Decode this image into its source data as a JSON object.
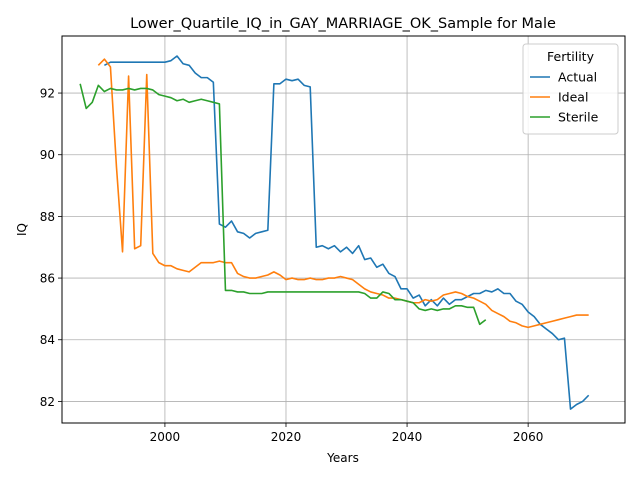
{
  "chart_data": {
    "type": "line",
    "title": "Lower_Quartile_IQ_in_GAY_MARRIAGE_OK_Sample for Male",
    "xlabel": "Years",
    "ylabel": "IQ",
    "xlim": [
      1983,
      2076
    ],
    "ylim": [
      81.3,
      93.85
    ],
    "xticks": [
      2000,
      2020,
      2040,
      2060
    ],
    "yticks": [
      82,
      84,
      86,
      88,
      90,
      92
    ],
    "grid": true,
    "legend": {
      "title": "Fertility",
      "placement": "top-right"
    },
    "series": [
      {
        "name": "Actual",
        "color": "#1f77b4",
        "x": [
          1990,
          1991,
          1992,
          1993,
          1994,
          1995,
          1996,
          1997,
          1998,
          1999,
          2000,
          2001,
          2002,
          2003,
          2004,
          2005,
          2006,
          2007,
          2008,
          2009,
          2010,
          2011,
          2012,
          2013,
          2014,
          2015,
          2016,
          2017,
          2018,
          2019,
          2020,
          2021,
          2022,
          2023,
          2024,
          2025,
          2026,
          2027,
          2028,
          2029,
          2030,
          2031,
          2032,
          2033,
          2034,
          2035,
          2036,
          2037,
          2038,
          2039,
          2040,
          2041,
          2042,
          2043,
          2044,
          2045,
          2046,
          2047,
          2048,
          2049,
          2050,
          2051,
          2052,
          2053,
          2054,
          2055,
          2056,
          2057,
          2058,
          2059,
          2060,
          2061,
          2062,
          2063,
          2064,
          2065,
          2066,
          2067,
          2068,
          2069,
          2070
        ],
        "y": [
          92.9,
          93.0,
          93.0,
          93.0,
          93.0,
          93.0,
          93.0,
          93.0,
          93.0,
          93.0,
          93.0,
          93.05,
          93.2,
          92.95,
          92.9,
          92.65,
          92.5,
          92.5,
          92.35,
          87.75,
          87.65,
          87.85,
          87.5,
          87.45,
          87.3,
          87.45,
          87.5,
          87.55,
          92.3,
          92.3,
          92.45,
          92.4,
          92.45,
          92.25,
          92.2,
          87.0,
          87.05,
          86.95,
          87.05,
          86.85,
          87.0,
          86.8,
          87.05,
          86.6,
          86.65,
          86.35,
          86.45,
          86.15,
          86.05,
          85.65,
          85.65,
          85.35,
          85.45,
          85.1,
          85.3,
          85.1,
          85.35,
          85.15,
          85.3,
          85.3,
          85.4,
          85.5,
          85.5,
          85.6,
          85.55,
          85.65,
          85.5,
          85.5,
          85.25,
          85.15,
          84.9,
          84.75,
          84.5,
          84.35,
          84.2,
          84.0,
          84.05,
          81.75,
          81.9,
          82.0,
          82.2
        ]
      },
      {
        "name": "Ideal",
        "color": "#ff7f0e",
        "x": [
          1989,
          1990,
          1991,
          1992,
          1993,
          1994,
          1995,
          1996,
          1997,
          1998,
          1999,
          2000,
          2001,
          2002,
          2003,
          2004,
          2005,
          2006,
          2007,
          2008,
          2009,
          2010,
          2011,
          2012,
          2013,
          2014,
          2015,
          2016,
          2017,
          2018,
          2019,
          2020,
          2021,
          2022,
          2023,
          2024,
          2025,
          2026,
          2027,
          2028,
          2029,
          2030,
          2031,
          2032,
          2033,
          2034,
          2035,
          2036,
          2037,
          2038,
          2039,
          2040,
          2041,
          2042,
          2043,
          2044,
          2045,
          2046,
          2047,
          2048,
          2049,
          2050,
          2051,
          2052,
          2053,
          2054,
          2055,
          2056,
          2057,
          2058,
          2059,
          2060,
          2061,
          2062,
          2063,
          2064,
          2065,
          2066,
          2067,
          2068,
          2069,
          2070
        ],
        "y": [
          92.9,
          93.1,
          92.85,
          89.6,
          86.85,
          92.55,
          86.95,
          87.05,
          92.6,
          86.8,
          86.5,
          86.4,
          86.4,
          86.3,
          86.25,
          86.2,
          86.35,
          86.5,
          86.5,
          86.5,
          86.55,
          86.5,
          86.5,
          86.15,
          86.05,
          86.0,
          86.0,
          86.05,
          86.1,
          86.2,
          86.1,
          85.95,
          86.0,
          85.95,
          85.95,
          86.0,
          85.95,
          85.95,
          86.0,
          86.0,
          86.05,
          86.0,
          85.95,
          85.8,
          85.65,
          85.55,
          85.5,
          85.45,
          85.35,
          85.35,
          85.3,
          85.25,
          85.2,
          85.2,
          85.3,
          85.25,
          85.3,
          85.45,
          85.5,
          85.55,
          85.5,
          85.4,
          85.35,
          85.25,
          85.15,
          84.95,
          84.85,
          84.75,
          84.6,
          84.55,
          84.45,
          84.4,
          84.45,
          84.5,
          84.55,
          84.6,
          84.65,
          84.7,
          84.75,
          84.8,
          84.8,
          84.8
        ]
      },
      {
        "name": "Sterile",
        "color": "#2ca02c",
        "x": [
          1986,
          1987,
          1988,
          1989,
          1990,
          1991,
          1992,
          1993,
          1994,
          1995,
          1996,
          1997,
          1998,
          1999,
          2000,
          2001,
          2002,
          2003,
          2004,
          2005,
          2006,
          2007,
          2008,
          2009,
          2010,
          2011,
          2012,
          2013,
          2014,
          2015,
          2016,
          2017,
          2018,
          2019,
          2020,
          2021,
          2022,
          2023,
          2024,
          2025,
          2026,
          2027,
          2028,
          2029,
          2030,
          2031,
          2032,
          2033,
          2034,
          2035,
          2036,
          2037,
          2038,
          2039,
          2040,
          2041,
          2042,
          2043,
          2044,
          2045,
          2046,
          2047,
          2048,
          2049,
          2050,
          2051,
          2052,
          2053
        ],
        "y": [
          92.3,
          91.5,
          91.7,
          92.25,
          92.05,
          92.15,
          92.1,
          92.1,
          92.15,
          92.1,
          92.15,
          92.15,
          92.1,
          91.95,
          91.9,
          91.85,
          91.75,
          91.8,
          91.7,
          91.75,
          91.8,
          91.75,
          91.7,
          91.65,
          85.6,
          85.6,
          85.55,
          85.55,
          85.5,
          85.5,
          85.5,
          85.55,
          85.55,
          85.55,
          85.55,
          85.55,
          85.55,
          85.55,
          85.55,
          85.55,
          85.55,
          85.55,
          85.55,
          85.55,
          85.55,
          85.55,
          85.55,
          85.5,
          85.35,
          85.35,
          85.55,
          85.5,
          85.3,
          85.3,
          85.25,
          85.2,
          85.0,
          84.95,
          85.0,
          84.95,
          85.0,
          85.0,
          85.1,
          85.1,
          85.05,
          85.05,
          84.5,
          84.65
        ]
      }
    ]
  }
}
